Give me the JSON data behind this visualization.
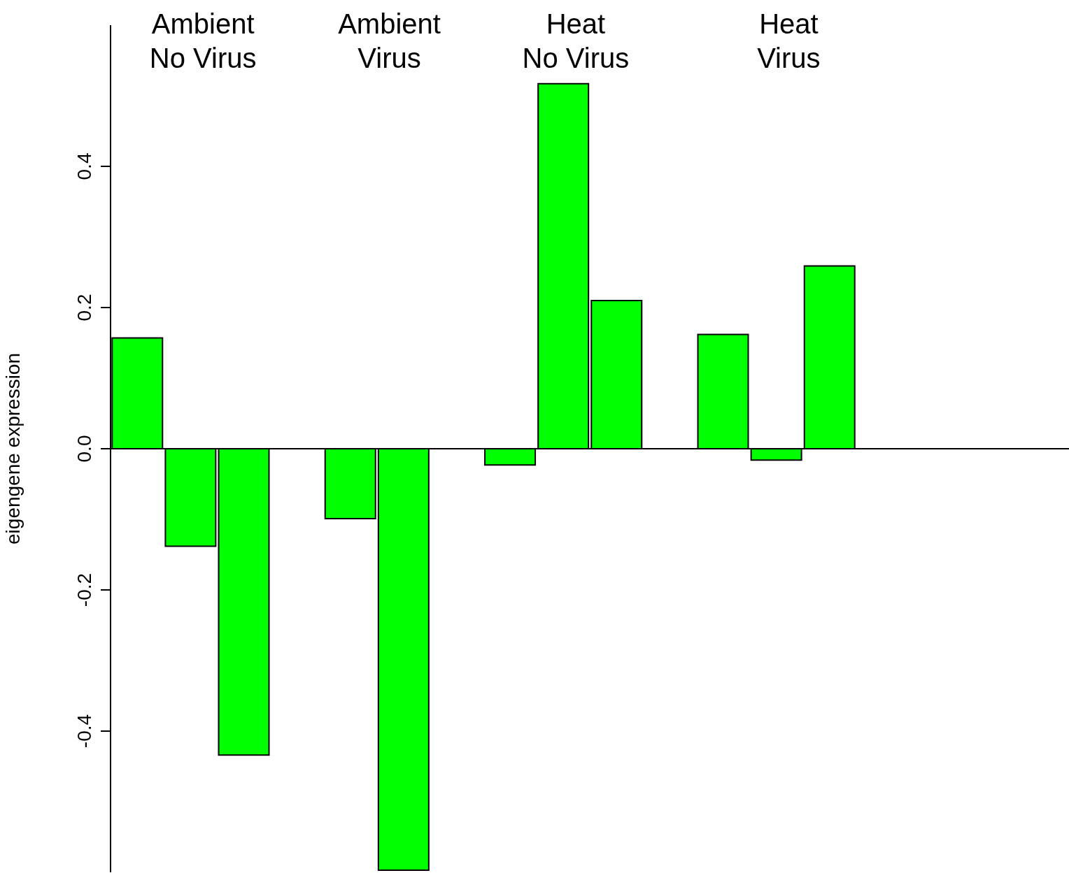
{
  "chart_data": {
    "type": "bar",
    "ylabel": "eigengene expression",
    "categories": [
      null,
      null,
      null,
      null,
      null,
      null,
      null,
      null,
      null,
      null,
      null,
      null,
      null,
      null,
      null,
      null,
      null,
      null
    ],
    "series": [
      {
        "color": "#00ff00",
        "values": [
          0.157,
          -0.138,
          -0.434,
          null,
          -0.099,
          -0.597,
          null,
          -0.023,
          0.517,
          0.21,
          null,
          0.162,
          -0.016,
          0.259,
          null,
          null,
          null,
          null
        ]
      }
    ],
    "ylim": [
      -0.6,
      0.6
    ],
    "yticks": [
      -0.4,
      -0.2,
      {
        "value": 0,
        "label": "0.0"
      },
      0.2,
      0.4
    ],
    "ref_lines": [
      {
        "axis": "y",
        "value": 0,
        "color": "#000000"
      }
    ],
    "grid": false,
    "legend": false,
    "tick_labels": "y",
    "annotations": [
      "Ambient",
      "No Virus",
      "Ambient",
      "Virus",
      "Heat",
      "No Virus",
      "Heat",
      "Virus"
    ]
  }
}
